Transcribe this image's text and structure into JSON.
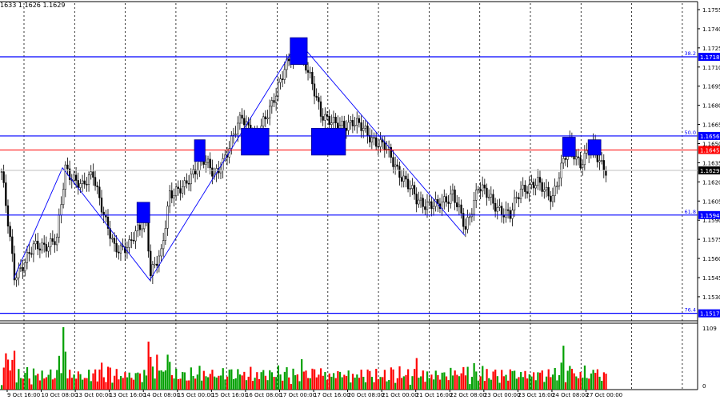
{
  "header": {
    "ohlc_text": "1633 1.1626 1.1629"
  },
  "colors": {
    "fib": "#0000ff",
    "resistance": "#ff0000",
    "current": "#000000",
    "box": "#0000ff",
    "volume_up": "#00a000",
    "volume_down": "#ff0000",
    "grid": "#000000"
  },
  "chart_data": {
    "type": "candlestick",
    "timeframe": "H1",
    "ylim": [
      1.151,
      1.1762
    ],
    "price_ticks": [
      "1.1755",
      "1.1740",
      "1.1725",
      "1.1710",
      "1.1695",
      "1.1680",
      "1.1665",
      "1.1650",
      "1.1635",
      "1.1620",
      "1.1605",
      "1.1590",
      "1.1575",
      "1.1560",
      "1.1545",
      "1.1530"
    ],
    "price_values": [
      1.1755,
      1.174,
      1.1725,
      1.171,
      1.1695,
      1.168,
      1.1665,
      1.165,
      1.1635,
      1.162,
      1.1605,
      1.159,
      1.1575,
      1.156,
      1.1545,
      1.153
    ],
    "time_labels": [
      "9 Oct 16:00",
      "10 Oct 08:00",
      "13 Oct 00:00",
      "13 Oct 16:00",
      "14 Oct 08:00",
      "15 Oct 00:00",
      "15 Oct 16:00",
      "16 Oct 08:00",
      "17 Oct 00:00",
      "17 Oct 16:00",
      "20 Oct 08:00",
      "21 Oct 00:00",
      "21 Oct 16:00",
      "22 Oct 08:00",
      "23 Oct 00:00",
      "23 Oct 16:00",
      "24 Oct 08:00",
      "27 Oct 00:00"
    ],
    "time_label_bars": [
      3,
      19,
      35,
      51,
      67,
      83,
      99,
      115,
      131,
      147,
      163,
      179,
      195,
      211,
      227,
      243,
      259,
      275
    ],
    "close_path": [
      [
        0,
        1.1628
      ],
      [
        6,
        1.1546
      ],
      [
        15,
        1.1568
      ],
      [
        26,
        1.1574
      ],
      [
        30,
        1.1631
      ],
      [
        38,
        1.1615
      ],
      [
        43,
        1.1628
      ],
      [
        49,
        1.1587
      ],
      [
        53,
        1.1568
      ],
      [
        60,
        1.157
      ],
      [
        68,
        1.1593
      ],
      [
        70,
        1.1549
      ],
      [
        75,
        1.1562
      ],
      [
        79,
        1.1612
      ],
      [
        86,
        1.1615
      ],
      [
        94,
        1.164
      ],
      [
        100,
        1.1624
      ],
      [
        107,
        1.1647
      ],
      [
        113,
        1.1672
      ],
      [
        120,
        1.1653
      ],
      [
        128,
        1.1687
      ],
      [
        137,
        1.1722
      ],
      [
        140,
        1.1726
      ],
      [
        145,
        1.17
      ],
      [
        150,
        1.1675
      ],
      [
        158,
        1.1662
      ],
      [
        165,
        1.1668
      ],
      [
        173,
        1.1656
      ],
      [
        180,
        1.1647
      ],
      [
        188,
        1.1625
      ],
      [
        195,
        1.1606
      ],
      [
        205,
        1.16
      ],
      [
        212,
        1.1612
      ],
      [
        218,
        1.1582
      ],
      [
        224,
        1.1618
      ],
      [
        231,
        1.1603
      ],
      [
        239,
        1.1593
      ],
      [
        244,
        1.1615
      ],
      [
        252,
        1.1618
      ],
      [
        259,
        1.1609
      ],
      [
        267,
        1.165
      ],
      [
        272,
        1.1634
      ],
      [
        278,
        1.1647
      ],
      [
        284,
        1.1629
      ]
    ],
    "zigzag": [
      [
        6,
        1.1544
      ],
      [
        29,
        1.1631
      ],
      [
        70,
        1.1543
      ],
      [
        139,
        1.1728
      ],
      [
        144,
        1.1722
      ],
      [
        218,
        1.1578
      ]
    ],
    "levels": [
      {
        "label": "38.2",
        "price": 1.1718,
        "badge": "1.1718",
        "kind": "fib"
      },
      {
        "label": "50.0",
        "price": 1.1656,
        "badge": "1.1656",
        "kind": "fib"
      },
      {
        "label": "61.8",
        "price": 1.1594,
        "badge": "1.1594",
        "kind": "fib"
      },
      {
        "label": "76.4",
        "price": 1.1517,
        "badge": "1.1517",
        "kind": "fib"
      },
      {
        "label": "",
        "price": 1.1645,
        "badge": "1.1645",
        "kind": "resistance"
      },
      {
        "label": "",
        "price": 1.1629,
        "badge": "1.1629",
        "kind": "current"
      }
    ],
    "highlight_boxes": [
      {
        "bar_from": 64,
        "bar_to": 70,
        "price_top": 1.1604,
        "price_bottom": 1.1588
      },
      {
        "bar_from": 91,
        "bar_to": 96,
        "price_top": 1.1653,
        "price_bottom": 1.1636
      },
      {
        "bar_from": 113,
        "bar_to": 126,
        "price_top": 1.1662,
        "price_bottom": 1.1641
      },
      {
        "bar_from": 136,
        "bar_to": 144,
        "price_top": 1.1733,
        "price_bottom": 1.1712
      },
      {
        "bar_from": 146,
        "bar_to": 162,
        "price_top": 1.1662,
        "price_bottom": 1.1641
      },
      {
        "bar_from": 264,
        "bar_to": 270,
        "price_top": 1.1655,
        "price_bottom": 1.164
      },
      {
        "bar_from": 276,
        "bar_to": 282,
        "price_top": 1.1653,
        "price_bottom": 1.1641
      }
    ],
    "volume": {
      "max_label": "1109",
      "min_label": "0",
      "max": 1109,
      "spikes": [
        [
          29,
          1109
        ],
        [
          73,
          620
        ],
        [
          141,
          540
        ],
        [
          264,
          780
        ],
        [
          195,
          560
        ],
        [
          226,
          420
        ]
      ]
    }
  }
}
